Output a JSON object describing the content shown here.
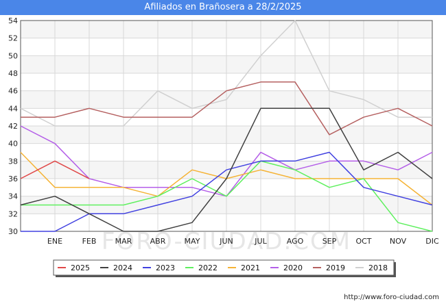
{
  "chart_data": {
    "type": "line",
    "title": "Afiliados en Brañosera a 28/2/2025",
    "xlabel": "",
    "ylabel": "",
    "ylim": [
      30,
      54
    ],
    "yticks": [
      30,
      32,
      34,
      36,
      38,
      40,
      42,
      44,
      46,
      48,
      50,
      52,
      54
    ],
    "categories": [
      "",
      "ENE",
      "FEB",
      "MAR",
      "ABR",
      "MAY",
      "JUN",
      "JUL",
      "AGO",
      "SEP",
      "OCT",
      "NOV",
      "DIC"
    ],
    "series": [
      {
        "name": "2018",
        "color": "#d0d0d0",
        "values": [
          44,
          42,
          42,
          42,
          46,
          44,
          45,
          50,
          54,
          46,
          45,
          43,
          43
        ]
      },
      {
        "name": "2019",
        "color": "#b56060",
        "values": [
          43,
          43,
          44,
          43,
          43,
          43,
          46,
          47,
          47,
          41,
          43,
          44,
          42
        ]
      },
      {
        "name": "2020",
        "color": "#b45ee8",
        "values": [
          42,
          40,
          36,
          35,
          35,
          35,
          34,
          39,
          37,
          38,
          38,
          37,
          39
        ]
      },
      {
        "name": "2021",
        "color": "#f5b335",
        "values": [
          39,
          35,
          35,
          35,
          34,
          37,
          36,
          37,
          36,
          36,
          36,
          36,
          33
        ]
      },
      {
        "name": "2022",
        "color": "#5ef05e",
        "values": [
          33,
          33,
          33,
          33,
          34,
          36,
          34,
          38,
          37,
          35,
          36,
          31,
          30
        ]
      },
      {
        "name": "2023",
        "color": "#4040e0",
        "values": [
          30,
          30,
          32,
          32,
          33,
          34,
          37,
          38,
          38,
          39,
          35,
          34,
          33
        ]
      },
      {
        "name": "2024",
        "color": "#404040",
        "values": [
          33,
          34,
          32,
          30,
          30,
          31,
          36,
          44,
          44,
          44,
          37,
          39,
          36
        ]
      },
      {
        "name": "2025",
        "color": "#e04848",
        "values": [
          36,
          38,
          36,
          null,
          null,
          null,
          null,
          null,
          null,
          null,
          null,
          null,
          null
        ]
      }
    ],
    "legend": {
      "position": "bottom",
      "order": [
        "2025",
        "2024",
        "2023",
        "2022",
        "2021",
        "2020",
        "2019",
        "2018"
      ]
    },
    "grid": true,
    "watermark": "FORO-CIUDAD.COM",
    "source": "http://www.foro-ciudad.com"
  }
}
